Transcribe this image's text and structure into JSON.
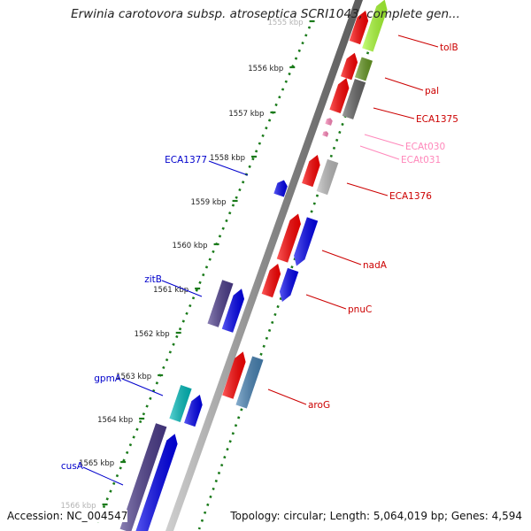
{
  "title": "Erwinia carotovora subsp. atroseptica SCRI1043, complete gen...",
  "footer": {
    "accession": "Accession: NC_004547",
    "topology": "Topology: circular; Length: 5,064,019 bp; Genes: 4,594"
  },
  "colors": {
    "backbone": "#808080",
    "tick_dots": "#1a7a1a",
    "forward_label": "#cc0000",
    "reverse_label": "#0000cc",
    "trna_label": "#ff88bb"
  },
  "scale_ticks": [
    "1555 kbp",
    "1556 kbp",
    "1557 kbp",
    "1558 kbp",
    "1559 kbp",
    "1560 kbp",
    "1561 kbp",
    "1562 kbp",
    "1563 kbp",
    "1564 kbp",
    "1565 kbp",
    "1566 kbp"
  ],
  "forward_genes": [
    {
      "label": "tolB",
      "color": "#ff0000"
    },
    {
      "label": "pal",
      "color": "#ff0000"
    },
    {
      "label": "ECA1375",
      "color": "#ff0000"
    },
    {
      "label": "ECAt030",
      "color": "#ff88bb"
    },
    {
      "label": "ECAt031",
      "color": "#ff88bb"
    },
    {
      "label": "ECA1376",
      "color": "#ff0000"
    },
    {
      "label": "nadA",
      "color": "#ff0000"
    },
    {
      "label": "pnuC",
      "color": "#ff0000"
    },
    {
      "label": "aroG",
      "color": "#ff0000"
    }
  ],
  "reverse_genes": [
    {
      "label": "ECA1377",
      "color": "#0000ee"
    },
    {
      "label": "zitB",
      "color": "#0000ee"
    },
    {
      "label": "gpmA",
      "color": "#0000ee"
    },
    {
      "label": "cusA",
      "color": "#0000ee"
    }
  ]
}
